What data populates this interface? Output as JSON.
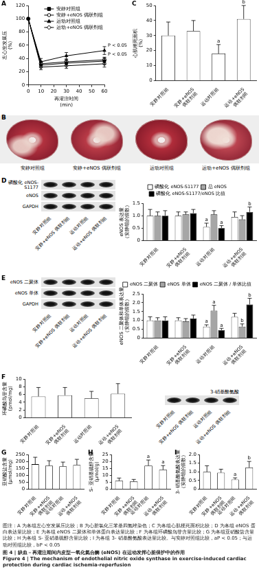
{
  "chart_data": [
    {
      "panel": "A",
      "type": "line",
      "x_label": "再灌注时间 (min)",
      "y_label": "左心室发展压 (%)",
      "x": [
        0,
        10,
        30,
        60
      ],
      "xlim": [
        0,
        60
      ],
      "xticks": [
        0,
        10,
        20,
        30,
        40,
        50,
        60
      ],
      "ylim": [
        0,
        120
      ],
      "yticks": [
        0,
        20,
        40,
        60,
        80,
        100,
        120
      ],
      "grid": false,
      "legend": "upper right",
      "annotations": [
        "P < 0.05",
        "P < 0.05"
      ],
      "series": [
        {
          "name": "安静对照组",
          "color": "#000000",
          "marker": "square",
          "values": [
            100,
            30,
            33,
            36
          ],
          "errors": [
            null,
            4,
            4,
            5
          ]
        },
        {
          "name": "安静+eNOS 偶联剂组",
          "color": "#000000",
          "marker": "open_circle",
          "values": [
            100,
            32,
            35,
            38
          ],
          "errors": [
            null,
            4,
            4,
            4
          ]
        },
        {
          "name": "运动对照组",
          "color": "#000000",
          "marker": "triangle",
          "values": [
            100,
            35,
            44,
            52
          ],
          "errors": [
            null,
            5,
            5,
            6
          ]
        },
        {
          "name": "运动+eNOS 偶联剂组",
          "color": "#000000",
          "marker": "open_diamond",
          "values": [
            100,
            27,
            29,
            32
          ],
          "errors": [
            null,
            4,
            4,
            5
          ]
        }
      ]
    },
    {
      "panel": "C",
      "type": "bar",
      "y_label": "心肌梗死面积 (%)",
      "categories": [
        "安静对照组",
        "安静+eNOS 偶联剂组",
        "运动对照组",
        "运动+eNOS 偶联剂组"
      ],
      "values": [
        30,
        33,
        18,
        41
      ],
      "errors": [
        9,
        7,
        6,
        9
      ],
      "annotations": [
        null,
        null,
        "a",
        "b"
      ],
      "color": "#ffffff",
      "ylim": [
        0,
        50
      ],
      "yticks": [
        0,
        10,
        20,
        30,
        40,
        50
      ],
      "grid": false
    },
    {
      "panel": "D",
      "type": "bar",
      "y_label": "eNOS 表达量（安静组的倍数）",
      "categories": [
        "安静对照组",
        "安静+eNOS 偶联剂组",
        "运动对照组",
        "运动+eNOS 偶联剂组"
      ],
      "ylim": [
        0,
        1.5
      ],
      "yticks": [
        0,
        0.5,
        {
          "value": 1,
          "label": "1.0"
        },
        1.5
      ],
      "grid": false,
      "legend": "top",
      "series": [
        {
          "name": "磷酸化 eNOS-S1177",
          "color": "#ffffff",
          "values": [
            1.0,
            1.0,
            0.55,
            0.95
          ],
          "errors": [
            0.25,
            0.15,
            0.15,
            0.2
          ],
          "annotations": [
            null,
            null,
            "a",
            null
          ]
        },
        {
          "name": "总 eNOS",
          "color": "#a6a6a6",
          "values": [
            1.0,
            1.05,
            1.05,
            0.85
          ],
          "errors": [
            0.15,
            0.1,
            0.15,
            0.15
          ],
          "annotations": [
            null,
            null,
            null,
            null
          ]
        },
        {
          "name": "磷酸化 eNOS-S1177/eNOS 比值",
          "color": "#000000",
          "values": [
            1.0,
            1.1,
            0.5,
            1.15
          ],
          "errors": [
            0.2,
            0.15,
            0.1,
            0.2
          ],
          "annotations": [
            null,
            null,
            "a",
            "b"
          ]
        }
      ]
    },
    {
      "panel": "E",
      "type": "bar",
      "y_label": "eNOS 二聚体和单体表达量（安静组的倍数）",
      "categories": [
        "安静对照组",
        "安静+eNOS 偶联剂组",
        "运动对照组",
        "运动+eNOS 偶联剂组"
      ],
      "ylim": [
        0,
        2.5
      ],
      "yticks": [
        0,
        0.5,
        {
          "value": 1,
          "label": "1.0"
        },
        1.5,
        {
          "value": 2,
          "label": "2.0"
        },
        2.5
      ],
      "grid": false,
      "legend": "top",
      "series": [
        {
          "name": "eNOS 二聚体",
          "color": "#ffffff",
          "values": [
            1.0,
            1.0,
            0.65,
            1.2
          ],
          "errors": [
            0.2,
            0.15,
            0.1,
            0.2
          ],
          "annotations": [
            null,
            null,
            "a",
            null
          ]
        },
        {
          "name": "eNOS 单体",
          "color": "#a6a6a6",
          "values": [
            1.0,
            0.95,
            1.55,
            0.65
          ],
          "errors": [
            0.15,
            0.15,
            0.3,
            0.15
          ],
          "annotations": [
            null,
            null,
            "a",
            "b"
          ]
        },
        {
          "name": "eNOS 二聚体 / 单体比值",
          "color": "#000000",
          "values": [
            1.0,
            1.1,
            0.45,
            1.9
          ],
          "errors": [
            0.2,
            0.2,
            0.1,
            0.35
          ],
          "annotations": [
            null,
            null,
            "a",
            "b"
          ]
        }
      ]
    },
    {
      "panel": "F",
      "type": "bar",
      "y_label": "环磷酸鸟苷含量 (pmol/mg)",
      "categories": [
        "安静对照组",
        "安静+eNOS 偶联剂组",
        "运动对照组",
        "运动+eNOS 偶联剂组"
      ],
      "values": [
        5.5,
        5.8,
        5.0,
        6.2
      ],
      "errors": [
        2.3,
        2.0,
        1.8,
        2.6
      ],
      "color": "#ffffff",
      "ylim": [
        0,
        10
      ],
      "yticks": [
        0,
        2,
        4,
        6,
        8,
        10
      ],
      "grid": false
    },
    {
      "panel": "G",
      "type": "bar",
      "y_label": "亚硝酸盐含量 (μmol/mg)",
      "categories": [
        "安静对照组",
        "安静+eNOS 偶联剂组",
        "运动对照组",
        "运动+eNOS 偶联剂组"
      ],
      "values": [
        180,
        170,
        165,
        175
      ],
      "errors": [
        50,
        35,
        30,
        40
      ],
      "color": "#ffffff",
      "ylim": [
        0,
        250
      ],
      "yticks": [
        0,
        50,
        100,
        150,
        200,
        250
      ],
      "grid": false
    },
    {
      "panel": "H",
      "type": "bar",
      "y_label": "S- 亚硝基硫醇含量 (μmol/g)",
      "categories": [
        "安静对照组",
        "安静+eNOS 偶联剂组",
        "运动对照组",
        "运动+eNOS 偶联剂组"
      ],
      "values": [
        6,
        5.5,
        17,
        14
      ],
      "errors": [
        2,
        1.5,
        4,
        3
      ],
      "annotations": [
        null,
        null,
        "a",
        "a"
      ],
      "color": "#ffffff",
      "ylim": [
        0,
        25
      ],
      "yticks": [
        0,
        5,
        10,
        15,
        20,
        25
      ],
      "grid": false
    },
    {
      "panel": "I",
      "type": "bar",
      "y_label": "3- 硝基酪氨酸表达量（安静组的倍数）",
      "categories": [
        "安静对照组",
        "安静+eNOS 偶联剂组",
        "运动对照组",
        "运动+eNOS 偶联剂组"
      ],
      "values": [
        1.0,
        0.95,
        0.55,
        1.25
      ],
      "errors": [
        0.35,
        0.2,
        0.1,
        0.35
      ],
      "annotations": [
        null,
        null,
        "a",
        "b"
      ],
      "color": "#ffffff",
      "ylim": [
        0,
        2
      ],
      "yticks": [
        0,
        0.5,
        {
          "value": 1,
          "label": "1.0"
        },
        1.5,
        {
          "value": 2,
          "label": "2.0"
        }
      ],
      "grid": false
    }
  ],
  "panel_b": {
    "panel": "B",
    "labels": [
      "安静对照组",
      "安静+eNOS 偶联剂组",
      "运动对照组",
      "运动+eNOS 偶联剂组"
    ]
  },
  "blots": [
    {
      "rows": [
        "磷酸化 eNOS-S1177",
        "eNOS",
        "GAPDH"
      ],
      "lanes": [
        "安静对照组",
        "安静+eNOS 偶联剂组",
        "运动对照组",
        "运动+eNOS 偶联剂组"
      ]
    },
    {
      "rows": [
        "eNOS 二聚体",
        "eNOS 单体",
        "GAPDH"
      ],
      "lanes": [
        "安静对照组",
        "安静+eNOS 偶联剂组",
        "运动对照组",
        "运动+eNOS 偶联剂组"
      ]
    },
    {
      "rows": [
        "3-硝基酪氨酸"
      ],
      "lanes": [
        "安静对照组",
        "安静+eNOS 偶联剂组",
        "运动对照组",
        "运动+eNOS 偶联剂组"
      ]
    }
  ],
  "caption": {
    "note": "图注：A 为各组左心室发展压比较；B 为心脏氯化三苯基四氮唑染色；C 为各组心肌梗死面积比较；D 为各组 eNOS 蛋白表达量比较；E 为各组 eNOS 二聚体和单体蛋白表达量比较；F 为各组环磷酸鸟苷含量比较；G 为各组亚硝酸盐含量比较；H 为各组 S- 亚硝基硫醇含量比较；I 为各组 3- 硝基酪氨酸表达量比较。与安静对照组比较，aP < 0.05；与运动对照组比较，bP < 0.05",
    "title_zh": "图 4 | 缺血－再灌注期间内皮型一氧化氮合酶 (eNOS) 在运动发挥心脏保护中的作用",
    "title_en": "Figure 4 | The mechanism of endothelial nitric oxide synthase in exercise-induced cardiac protection during cardiac ischemia-reperfusion"
  }
}
